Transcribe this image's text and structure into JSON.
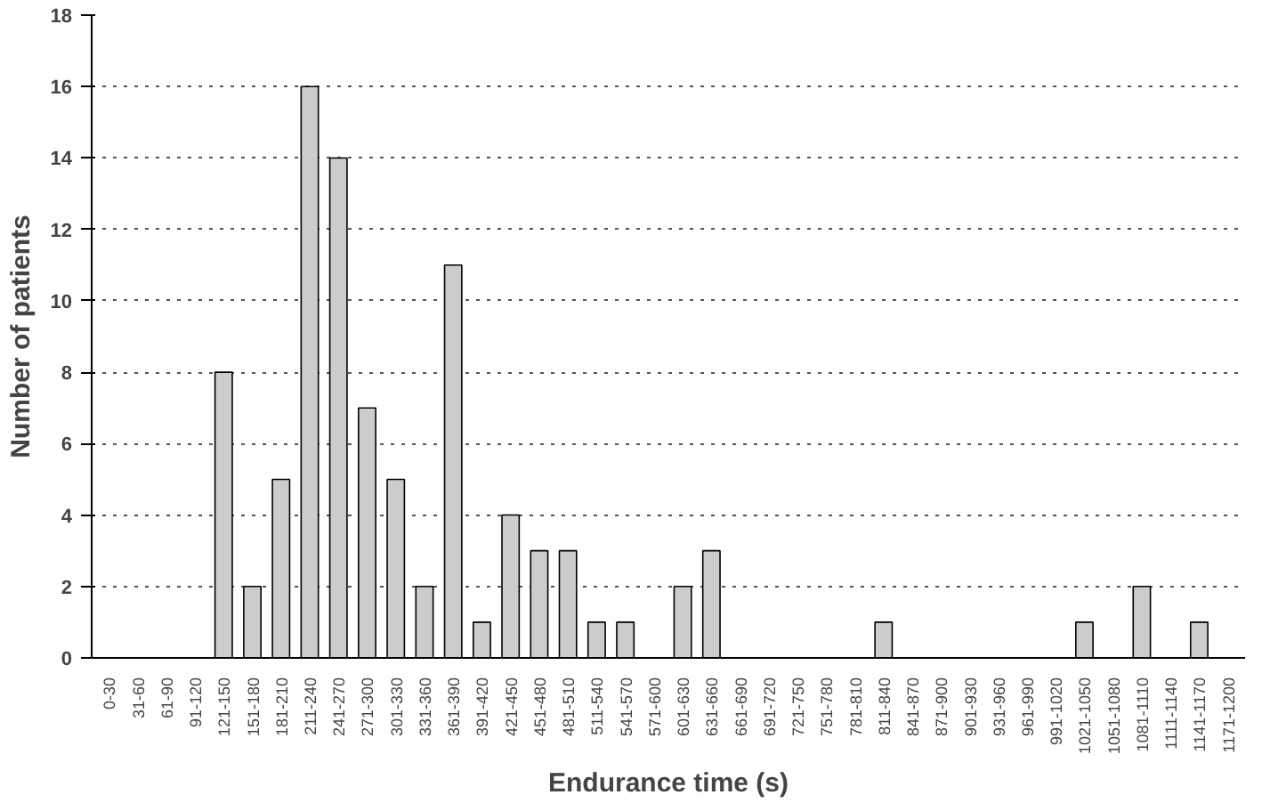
{
  "chart_data": {
    "type": "bar",
    "xlabel": "Endurance time (s)",
    "ylabel": "Number of patients",
    "categories": [
      "0-30",
      "31-60",
      "61-90",
      "91-120",
      "121-150",
      "151-180",
      "181-210",
      "211-240",
      "241-270",
      "271-300",
      "301-330",
      "331-360",
      "361-390",
      "391-420",
      "421-450",
      "451-480",
      "481-510",
      "511-540",
      "541-570",
      "571-600",
      "601-630",
      "631-660",
      "661-690",
      "691-720",
      "721-750",
      "751-780",
      "781-810",
      "811-840",
      "841-870",
      "871-900",
      "901-930",
      "931-960",
      "961-990",
      "991-1020",
      "1021-1050",
      "1051-1080",
      "1081-1110",
      "1111-1140",
      "1141-1170",
      "1171-1200"
    ],
    "values": [
      0,
      0,
      0,
      0,
      8,
      2,
      5,
      16,
      14,
      7,
      5,
      2,
      11,
      1,
      4,
      3,
      3,
      1,
      1,
      0,
      2,
      3,
      0,
      0,
      0,
      0,
      0,
      1,
      0,
      0,
      0,
      0,
      0,
      0,
      1,
      0,
      2,
      0,
      1,
      0
    ],
    "color": "#cccccc",
    "ylim": [
      0,
      18
    ],
    "yticks": [
      0,
      2,
      4,
      6,
      8,
      10,
      12,
      14,
      16,
      18
    ],
    "grid": "y",
    "line_style": "dotted"
  }
}
